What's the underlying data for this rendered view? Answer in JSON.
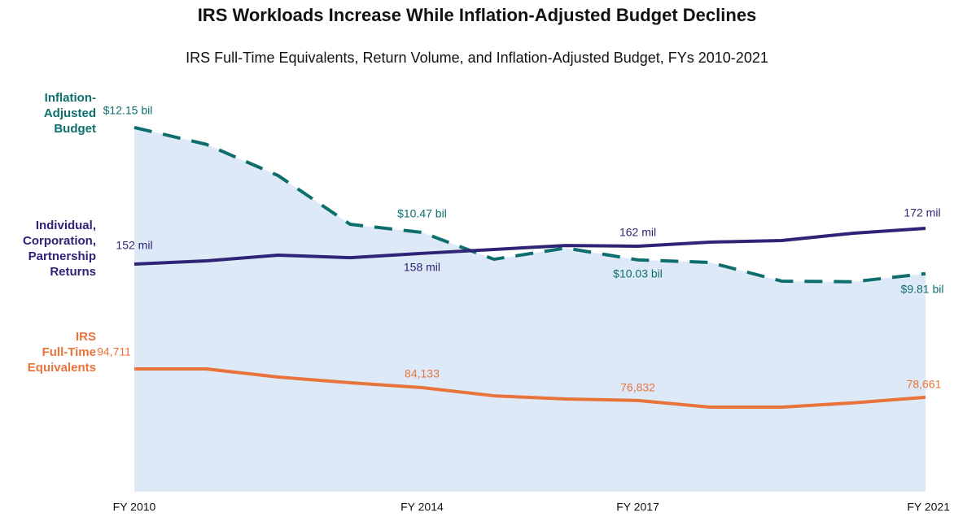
{
  "chart_data": {
    "type": "line",
    "title": "IRS Workloads Increase While Inflation-Adjusted Budget Declines",
    "subtitle": "IRS Full-Time Equivalents, Return Volume, and Inflation-Adjusted Budget, FYs 2010-2021",
    "categories": [
      "FY 2010",
      null,
      null,
      null,
      "FY 2014",
      null,
      null,
      "FY 2017",
      null,
      null,
      null,
      "FY 2021"
    ],
    "series": [
      {
        "name": "Inflation-\nAdjusted\nBudget",
        "color": "#0e6e6e",
        "dashed": true,
        "area_color": "#dde9f7",
        "ylim": [
          6.32,
          12.89
        ],
        "values": [
          12.15,
          11.88,
          11.38,
          10.6,
          10.47,
          10.04,
          10.22,
          10.03,
          9.99,
          9.69,
          9.68,
          9.81
        ],
        "value_labels": [
          "$12.15 bil",
          null,
          null,
          null,
          "$10.47 bil",
          null,
          null,
          "$10.03 bil",
          null,
          null,
          null,
          "$9.81 bil"
        ]
      },
      {
        "name": "Individual,\nCorporation,\nPartnership\nReturns",
        "color": "#2d2476",
        "ylim": [
          24.7,
          254.3
        ],
        "values": [
          152,
          153.8,
          157,
          155.6,
          158,
          160.2,
          162.4,
          162,
          164.3,
          165.2,
          169.3,
          172
        ],
        "value_labels": [
          "152 mil",
          null,
          null,
          null,
          "158 mil",
          null,
          null,
          "162 mil",
          null,
          null,
          null,
          "172 mil"
        ]
      },
      {
        "name": "IRS\nFull-Time\nEquivalents",
        "color": "#e8743b",
        "ylim": [
          25251,
          257551
        ],
        "values": [
          94711,
          94711,
          90100,
          86900,
          84133,
          79500,
          77700,
          76832,
          73100,
          73100,
          75500,
          78661
        ],
        "value_labels": [
          "94,711",
          null,
          null,
          null,
          "84,133",
          null,
          null,
          "76,832",
          null,
          null,
          null,
          "78,661"
        ]
      }
    ]
  }
}
